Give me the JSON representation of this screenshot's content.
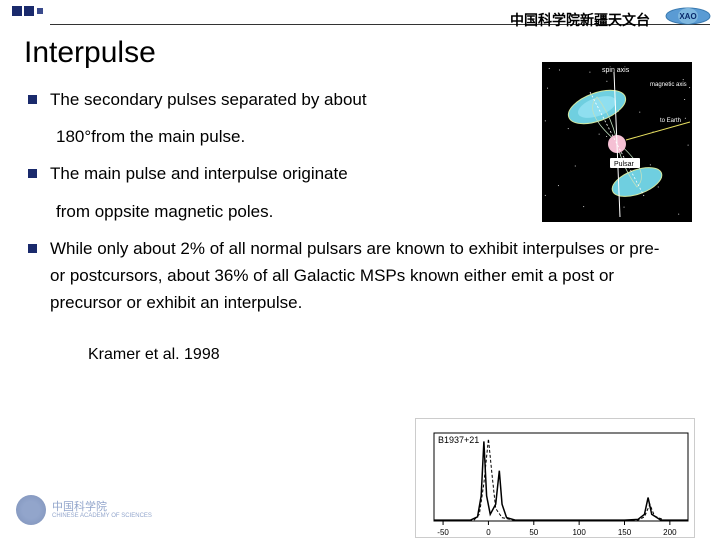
{
  "header": {
    "org_text": "中国科学院新疆天文台",
    "logo_text": "XAO",
    "logo_fill": "#5a9bd4",
    "logo_text_color": "#0a2a6c",
    "accent_color": "#1a2a6c"
  },
  "slide": {
    "title": "Interpulse",
    "bullets": [
      {
        "text_a": "The secondary pulses separated by about",
        "text_b": "180°from the main pulse."
      },
      {
        "text_a": "The main pulse and interpulse originate",
        "text_b": "from oppsite magnetic poles."
      },
      {
        "text_a": "While only about 2% of all normal pulsars are known to exhibit interpulses or pre- or postcursors, about 36% of all Galactic MSPs known either emit a post or precursor or exhibit an interpulse.",
        "text_b": ""
      }
    ],
    "citation": "Kramer et al. 1998"
  },
  "pulsar_diagram": {
    "labels": {
      "spin_axis": "spin axis",
      "magnetic_axis": "magnetic axis",
      "to_earth": "to Earth",
      "pulsar": "Pulsar"
    },
    "colors": {
      "bg": "#000000",
      "cone": "#6fcfe0",
      "cone_edge": "#d4e8a0",
      "sphere": "#f5c0d4",
      "beam": "#e8e060",
      "label_text": "#ffffff"
    }
  },
  "pulse_chart": {
    "title": "B1937+21",
    "x_ticks": [
      -50,
      0,
      50,
      100,
      150,
      200
    ],
    "xlim": [
      -60,
      220
    ],
    "ylim": [
      0,
      1.05
    ],
    "series": [
      {
        "style": "solid",
        "color": "#000000",
        "width": 1.5,
        "points": [
          [
            -60,
            0.01
          ],
          [
            -20,
            0.01
          ],
          [
            -12,
            0.05
          ],
          [
            -8,
            0.3
          ],
          [
            -5,
            0.95
          ],
          [
            -2,
            0.3
          ],
          [
            2,
            0.08
          ],
          [
            8,
            0.2
          ],
          [
            12,
            0.6
          ],
          [
            15,
            0.2
          ],
          [
            20,
            0.04
          ],
          [
            30,
            0.01
          ],
          [
            150,
            0.01
          ],
          [
            165,
            0.02
          ],
          [
            172,
            0.08
          ],
          [
            176,
            0.28
          ],
          [
            180,
            0.08
          ],
          [
            190,
            0.01
          ],
          [
            220,
            0.01
          ]
        ]
      },
      {
        "style": "dashed",
        "color": "#000000",
        "width": 1,
        "points": [
          [
            -60,
            0.005
          ],
          [
            -16,
            0.01
          ],
          [
            -10,
            0.08
          ],
          [
            -5,
            0.45
          ],
          [
            0,
            0.98
          ],
          [
            4,
            0.55
          ],
          [
            8,
            0.15
          ],
          [
            15,
            0.04
          ],
          [
            30,
            0.005
          ],
          [
            150,
            0.005
          ],
          [
            165,
            0.01
          ],
          [
            172,
            0.05
          ],
          [
            178,
            0.2
          ],
          [
            183,
            0.06
          ],
          [
            195,
            0.005
          ],
          [
            220,
            0.005
          ]
        ]
      }
    ],
    "axis_color": "#000000",
    "tick_fontsize": 8
  },
  "footer": {
    "cn_text": "中国科学院",
    "en_text": "CHINESE ACADEMY OF SCIENCES"
  }
}
